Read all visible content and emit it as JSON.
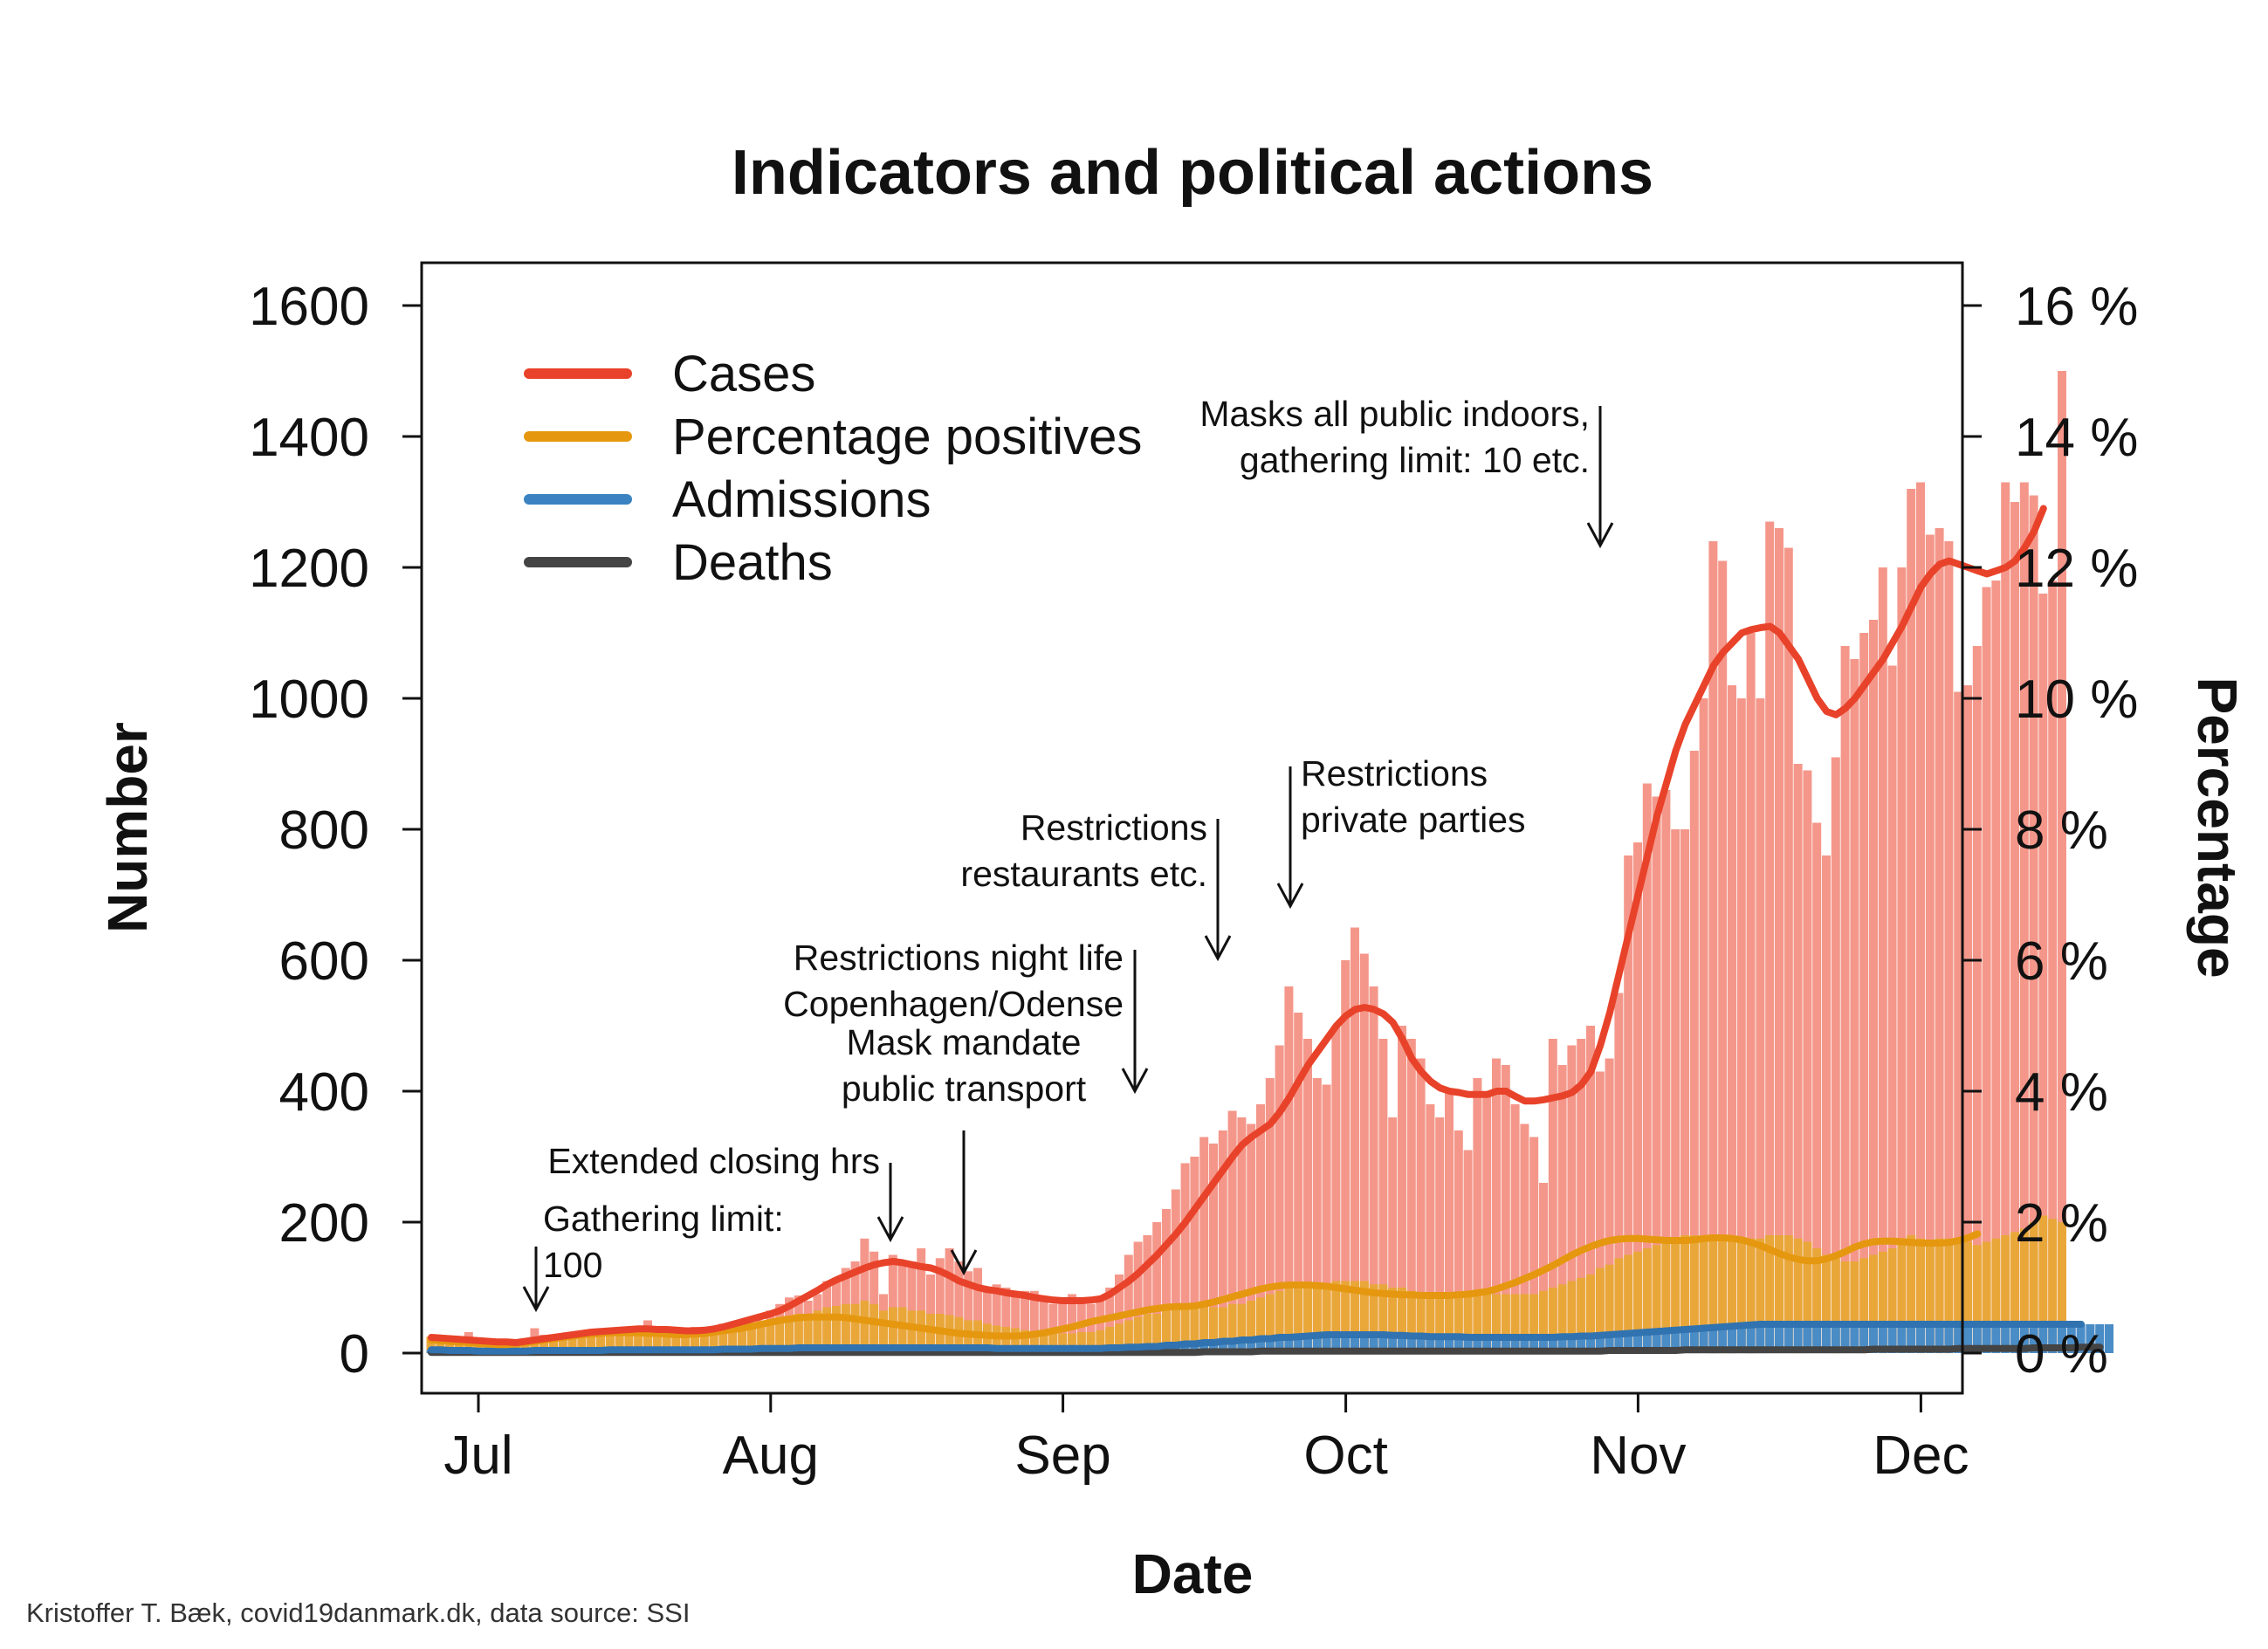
{
  "chart_data": {
    "type": "bar+line",
    "title": "Indicators and political actions",
    "xlabel": "Date",
    "ylabel_left": "Number",
    "ylabel_right": "Percentage",
    "ylim_left": [
      0,
      1600
    ],
    "ylim_right": [
      0,
      16
    ],
    "grid": false,
    "legend_position": "top-left",
    "x_ticks": [
      {
        "label": "Jul",
        "date": "2020-07-01"
      },
      {
        "label": "Aug",
        "date": "2020-08-01"
      },
      {
        "label": "Sep",
        "date": "2020-09-01"
      },
      {
        "label": "Oct",
        "date": "2020-10-01"
      },
      {
        "label": "Nov",
        "date": "2020-11-01"
      },
      {
        "label": "Dec",
        "date": "2020-12-01"
      }
    ],
    "y_ticks_left": [
      {
        "label": "0",
        "value": 0
      },
      {
        "label": "200",
        "value": 200
      },
      {
        "label": "400",
        "value": 400
      },
      {
        "label": "600",
        "value": 600
      },
      {
        "label": "800",
        "value": 800
      },
      {
        "label": "1000",
        "value": 1000
      },
      {
        "label": "1200",
        "value": 1200
      },
      {
        "label": "1400",
        "value": 1400
      },
      {
        "label": "1600",
        "value": 1600
      }
    ],
    "y_ticks_right": [
      {
        "label": "0 %",
        "value": 0
      },
      {
        "label": "2 %",
        "value": 2
      },
      {
        "label": "4 %",
        "value": 4
      },
      {
        "label": "6 %",
        "value": 6
      },
      {
        "label": "8 %",
        "value": 8
      },
      {
        "label": "10 %",
        "value": 10
      },
      {
        "label": "12 %",
        "value": 12
      },
      {
        "label": "14 %",
        "value": 14
      },
      {
        "label": "16 %",
        "value": 16
      }
    ],
    "legend": [
      {
        "name": "Cases",
        "color": "#e8432a"
      },
      {
        "name": "Percentage positives",
        "color": "#e5980f"
      },
      {
        "name": "Admissions",
        "color": "#3a83c0"
      },
      {
        "name": "Deaths",
        "color": "#444444"
      }
    ],
    "colors": {
      "cases_bar": "#f4978a",
      "cases_line": "#e8432a",
      "pct_bar": "#e9a73a",
      "pct_line": "#e5980f",
      "adm_bar": "#4a8cc6",
      "adm_line": "#3073b0",
      "deaths_line": "#444444"
    },
    "cases_daily": {
      "start": "2020-06-26",
      "values": [
        25,
        28,
        20,
        25,
        32,
        22,
        18,
        20,
        20,
        10,
        18,
        38,
        28,
        15,
        30,
        28,
        25,
        28,
        35,
        30,
        25,
        32,
        28,
        50,
        35,
        40,
        30,
        32,
        40,
        35,
        40,
        45,
        40,
        32,
        38,
        50,
        65,
        75,
        85,
        88,
        80,
        90,
        110,
        115,
        130,
        140,
        175,
        155,
        90,
        150,
        135,
        140,
        160,
        120,
        145,
        160,
        140,
        125,
        130,
        100,
        105,
        100,
        95,
        95,
        95,
        80,
        75,
        85,
        90,
        80,
        75,
        85,
        100,
        120,
        150,
        170,
        180,
        200,
        220,
        250,
        290,
        300,
        330,
        320,
        340,
        370,
        360,
        350,
        380,
        420,
        470,
        560,
        520,
        480,
        420,
        410,
        500,
        600,
        650,
        610,
        560,
        480,
        360,
        500,
        480,
        450,
        380,
        360,
        400,
        340,
        310,
        420,
        400,
        450,
        440,
        380,
        350,
        330,
        260,
        480,
        440,
        470,
        480,
        500,
        430,
        450,
        550,
        760,
        780,
        870,
        850,
        860,
        800,
        800,
        920,
        1000,
        1240,
        1210,
        1020,
        1000,
        1100,
        1000,
        1270,
        1260,
        1230,
        900,
        890,
        810,
        760,
        910,
        1080,
        1060,
        1100,
        1120,
        1200,
        1050,
        1200,
        1320,
        1330,
        1250,
        1260,
        1240,
        1010,
        1020,
        1080,
        1170,
        1180,
        1330,
        1300,
        1330,
        1310,
        1160,
        1180,
        1500
      ]
    },
    "cases_smoothed": {
      "start": "2020-06-26",
      "values": [
        24,
        23,
        22,
        21,
        20,
        19,
        18,
        17,
        17,
        16,
        18,
        20,
        22,
        24,
        26,
        28,
        30,
        32,
        33,
        34,
        35,
        36,
        37,
        37,
        36,
        36,
        35,
        34,
        34,
        35,
        37,
        40,
        44,
        48,
        52,
        56,
        60,
        65,
        72,
        80,
        88,
        96,
        105,
        112,
        118,
        124,
        130,
        135,
        138,
        140,
        138,
        135,
        132,
        130,
        125,
        118,
        110,
        105,
        100,
        97,
        95,
        92,
        90,
        88,
        85,
        83,
        81,
        80,
        80,
        80,
        81,
        83,
        90,
        100,
        110,
        122,
        136,
        150,
        166,
        182,
        200,
        220,
        240,
        260,
        280,
        300,
        318,
        330,
        340,
        350,
        368,
        390,
        415,
        440,
        460,
        480,
        500,
        515,
        525,
        528,
        525,
        518,
        505,
        480,
        450,
        430,
        415,
        405,
        400,
        398,
        395,
        395,
        395,
        400,
        400,
        392,
        385,
        385,
        387,
        390,
        393,
        398,
        410,
        430,
        470,
        520,
        580,
        640,
        700,
        760,
        820,
        870,
        920,
        960,
        990,
        1020,
        1050,
        1070,
        1085,
        1100,
        1105,
        1108,
        1110,
        1100,
        1080,
        1060,
        1030,
        1000,
        980,
        975,
        985,
        1000,
        1020,
        1040,
        1060,
        1085,
        1110,
        1140,
        1170,
        1190,
        1205,
        1210,
        1205,
        1200,
        1195,
        1190,
        1195,
        1200,
        1210,
        1230,
        1255,
        1290
      ]
    },
    "pct_positive_daily": {
      "start": "2020-06-26",
      "values": [
        0.25,
        0.2,
        0.2,
        0.18,
        0.15,
        0.15,
        0.15,
        0.12,
        0.12,
        0.1,
        0.15,
        0.2,
        0.2,
        0.2,
        0.25,
        0.28,
        0.3,
        0.32,
        0.35,
        0.35,
        0.35,
        0.38,
        0.35,
        0.38,
        0.35,
        0.35,
        0.3,
        0.32,
        0.35,
        0.35,
        0.35,
        0.38,
        0.38,
        0.4,
        0.42,
        0.45,
        0.5,
        0.55,
        0.55,
        0.6,
        0.6,
        0.65,
        0.7,
        0.72,
        0.75,
        0.75,
        0.8,
        0.75,
        0.65,
        0.7,
        0.7,
        0.65,
        0.65,
        0.6,
        0.6,
        0.58,
        0.55,
        0.5,
        0.5,
        0.45,
        0.42,
        0.4,
        0.38,
        0.35,
        0.32,
        0.3,
        0.3,
        0.3,
        0.3,
        0.32,
        0.32,
        0.35,
        0.4,
        0.45,
        0.5,
        0.55,
        0.6,
        0.6,
        0.65,
        0.7,
        0.7,
        0.75,
        0.75,
        0.7,
        0.7,
        0.75,
        0.75,
        0.8,
        0.85,
        0.9,
        0.95,
        1.0,
        1.0,
        1.05,
        1.0,
        1.05,
        1.1,
        1.1,
        1.1,
        1.1,
        1.05,
        1.05,
        1.0,
        1.0,
        0.95,
        0.9,
        0.9,
        0.9,
        0.9,
        0.9,
        0.9,
        0.9,
        0.9,
        0.9,
        0.9,
        0.9,
        0.9,
        0.9,
        0.95,
        1.0,
        1.05,
        1.1,
        1.15,
        1.2,
        1.3,
        1.35,
        1.45,
        1.5,
        1.55,
        1.6,
        1.65,
        1.7,
        1.75,
        1.8,
        1.8,
        1.8,
        1.75,
        1.75,
        1.75,
        1.7,
        1.75,
        1.75,
        1.8,
        1.8,
        1.8,
        1.75,
        1.7,
        1.6,
        1.5,
        1.45,
        1.4,
        1.4,
        1.45,
        1.5,
        1.55,
        1.6,
        1.7,
        1.8,
        1.75,
        1.7,
        1.75,
        1.75,
        1.7,
        1.7,
        1.65,
        1.7,
        1.75,
        1.8,
        1.85,
        1.9,
        2.0,
        2.1,
        2.05,
        2.0
      ]
    },
    "pct_positive_smoothed": {
      "start": "2020-06-26",
      "values": [
        0.2,
        0.19,
        0.18,
        0.17,
        0.16,
        0.15,
        0.14,
        0.13,
        0.13,
        0.14,
        0.16,
        0.18,
        0.2,
        0.22,
        0.24,
        0.26,
        0.28,
        0.29,
        0.3,
        0.31,
        0.31,
        0.31,
        0.31,
        0.3,
        0.3,
        0.29,
        0.28,
        0.28,
        0.29,
        0.3,
        0.32,
        0.34,
        0.36,
        0.38,
        0.41,
        0.44,
        0.47,
        0.5,
        0.52,
        0.54,
        0.55,
        0.55,
        0.55,
        0.55,
        0.54,
        0.52,
        0.5,
        0.48,
        0.46,
        0.44,
        0.42,
        0.4,
        0.38,
        0.36,
        0.34,
        0.32,
        0.3,
        0.29,
        0.28,
        0.27,
        0.26,
        0.26,
        0.26,
        0.27,
        0.29,
        0.31,
        0.34,
        0.37,
        0.4,
        0.44,
        0.48,
        0.51,
        0.54,
        0.57,
        0.6,
        0.63,
        0.66,
        0.68,
        0.7,
        0.71,
        0.71,
        0.72,
        0.75,
        0.78,
        0.82,
        0.86,
        0.9,
        0.94,
        0.98,
        1.01,
        1.03,
        1.04,
        1.04,
        1.04,
        1.03,
        1.02,
        1.0,
        0.98,
        0.96,
        0.94,
        0.92,
        0.91,
        0.9,
        0.89,
        0.89,
        0.88,
        0.88,
        0.88,
        0.88,
        0.89,
        0.9,
        0.92,
        0.94,
        0.98,
        1.03,
        1.08,
        1.14,
        1.2,
        1.27,
        1.34,
        1.42,
        1.5,
        1.57,
        1.63,
        1.68,
        1.72,
        1.74,
        1.75,
        1.75,
        1.74,
        1.73,
        1.72,
        1.72,
        1.72,
        1.73,
        1.75,
        1.76,
        1.76,
        1.75,
        1.73,
        1.69,
        1.64,
        1.58,
        1.52,
        1.47,
        1.43,
        1.41,
        1.41,
        1.44,
        1.49,
        1.55,
        1.62,
        1.67,
        1.7,
        1.71,
        1.71,
        1.7,
        1.69,
        1.68,
        1.68,
        1.68,
        1.69,
        1.72,
        1.76,
        1.82
      ]
    },
    "admissions_daily": {
      "start": "2020-06-26",
      "values": [
        5,
        5,
        4,
        4,
        4,
        3,
        3,
        3,
        3,
        3,
        3,
        4,
        4,
        4,
        4,
        4,
        4,
        4,
        4,
        5,
        5,
        5,
        5,
        5,
        5,
        5,
        5,
        5,
        5,
        5,
        5,
        6,
        6,
        6,
        6,
        7,
        7,
        7,
        7,
        8,
        8,
        8,
        8,
        8,
        8,
        8,
        8,
        8,
        8,
        8,
        8,
        8,
        8,
        8,
        8,
        8,
        8,
        8,
        8,
        8,
        7,
        7,
        7,
        7,
        7,
        7,
        7,
        7,
        7,
        7,
        7,
        7,
        8,
        8,
        9,
        9,
        10,
        10,
        12,
        12,
        14,
        14,
        16,
        16,
        18,
        18,
        20,
        20,
        22,
        22,
        24,
        24,
        25,
        26,
        27,
        28,
        28,
        28,
        28,
        28,
        28,
        28,
        27,
        27,
        26,
        26,
        25,
        25,
        25,
        25,
        24,
        24,
        24,
        24,
        24,
        24,
        24,
        24,
        24,
        24,
        25,
        25,
        26,
        26,
        27,
        28,
        29,
        30,
        31,
        32,
        33,
        34,
        35,
        36,
        37,
        38,
        39,
        40,
        41,
        42,
        43,
        44,
        44,
        44,
        44,
        44,
        44,
        44,
        44,
        44,
        44,
        44,
        44,
        44,
        44,
        44,
        44,
        44,
        44,
        44,
        44,
        44,
        44,
        44,
        44,
        44,
        44,
        44,
        44,
        44,
        44,
        44,
        44,
        44,
        44,
        44,
        44,
        44,
        44
      ]
    },
    "admissions_smoothed": {
      "start": "2020-06-26",
      "values": [
        5,
        5,
        4,
        4,
        4,
        3,
        3,
        3,
        3,
        3,
        3,
        4,
        4,
        4,
        4,
        4,
        4,
        4,
        4,
        5,
        5,
        5,
        5,
        5,
        5,
        5,
        5,
        5,
        5,
        5,
        5,
        6,
        6,
        6,
        6,
        7,
        7,
        7,
        7,
        8,
        8,
        8,
        8,
        8,
        8,
        8,
        8,
        8,
        8,
        8,
        8,
        8,
        8,
        8,
        8,
        8,
        8,
        8,
        8,
        8,
        7,
        7,
        7,
        7,
        7,
        7,
        7,
        7,
        7,
        7,
        7,
        7,
        8,
        8,
        9,
        9,
        10,
        10,
        12,
        12,
        14,
        14,
        16,
        16,
        18,
        18,
        20,
        20,
        22,
        22,
        24,
        24,
        25,
        26,
        27,
        28,
        28,
        28,
        28,
        28,
        28,
        28,
        27,
        27,
        26,
        26,
        25,
        25,
        25,
        25,
        24,
        24,
        24,
        24,
        24,
        24,
        24,
        24,
        24,
        24,
        25,
        25,
        26,
        26,
        27,
        28,
        29,
        30,
        31,
        32,
        33,
        34,
        35,
        36,
        37,
        38,
        39,
        40,
        41,
        42,
        43,
        44,
        44,
        44,
        44,
        44,
        44,
        44,
        44,
        44,
        44,
        44,
        44,
        44,
        44,
        44,
        44,
        44,
        44,
        44,
        44,
        44,
        44,
        44,
        44,
        44,
        44,
        44,
        44,
        44,
        44,
        44,
        44,
        44,
        44,
        44
      ]
    },
    "deaths_smoothed": {
      "start": "2020-06-26",
      "values": [
        1,
        1,
        1,
        1,
        1,
        1,
        1,
        1,
        1,
        1,
        1,
        1,
        1,
        1,
        1,
        1,
        1,
        1,
        1,
        1,
        1,
        1,
        1,
        1,
        1,
        1,
        1,
        1,
        1,
        1,
        1,
        1,
        1,
        1,
        1,
        1,
        1,
        1,
        1,
        1,
        1,
        1,
        1,
        1,
        1,
        1,
        1,
        1,
        1,
        1,
        1,
        1,
        1,
        1,
        1,
        1,
        1,
        1,
        1,
        1,
        1,
        1,
        1,
        1,
        1,
        1,
        1,
        1,
        1,
        1,
        1,
        1,
        1,
        1,
        1,
        1,
        1,
        1,
        1,
        1,
        1,
        1,
        2,
        2,
        2,
        2,
        2,
        2,
        3,
        3,
        3,
        3,
        3,
        3,
        3,
        3,
        3,
        3,
        3,
        3,
        3,
        3,
        3,
        3,
        3,
        3,
        3,
        3,
        3,
        3,
        3,
        3,
        3,
        3,
        3,
        3,
        3,
        3,
        3,
        3,
        3,
        3,
        3,
        3,
        3,
        4,
        4,
        4,
        4,
        4,
        4,
        4,
        4,
        5,
        5,
        5,
        5,
        5,
        5,
        5,
        5,
        5,
        5,
        5,
        5,
        5,
        5,
        5,
        5,
        5,
        5,
        5,
        5,
        6,
        6,
        6,
        6,
        6,
        6,
        6,
        6,
        6,
        7,
        7,
        7,
        7,
        7,
        7,
        7,
        7,
        8,
        8,
        8,
        8,
        8,
        9,
        9,
        9
      ]
    },
    "annotations": [
      {
        "lines": [
          "Gathering limit:",
          "100"
        ],
        "date": "2020-07-07"
      },
      {
        "lines": [
          "Extended closing hrs"
        ],
        "date": "2020-08-14"
      },
      {
        "lines": [
          "Mask mandate",
          "public transport"
        ],
        "date": "2020-08-22"
      },
      {
        "lines": [
          "Restrictions night life",
          "Copenhagen/Odense"
        ],
        "date": "2020-09-09"
      },
      {
        "lines": [
          "Restrictions",
          "restaurants etc."
        ],
        "date": "2020-09-18"
      },
      {
        "lines": [
          "Restrictions",
          "private parties"
        ],
        "date": "2020-09-26"
      },
      {
        "lines": [
          "Masks all public indoors,",
          "gathering limit: 10 etc."
        ],
        "date": "2020-10-29"
      }
    ],
    "credit": "Kristoffer T. Bæk, covid19danmark.dk, data source: SSI"
  }
}
